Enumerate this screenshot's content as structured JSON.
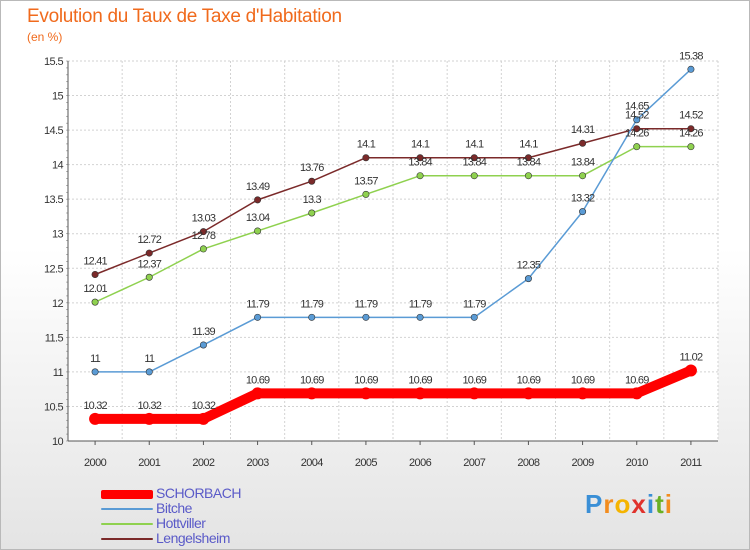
{
  "chart_data": {
    "type": "line",
    "title": "Evolution du Taux de Taxe d'Habitation",
    "subtitle": "(en %)",
    "xlabel": "",
    "ylabel": "",
    "x": [
      "2000",
      "2001",
      "2002",
      "2003",
      "2004",
      "2005",
      "2006",
      "2007",
      "2008",
      "2009",
      "2010",
      "2011"
    ],
    "ylim": [
      10,
      15.5
    ],
    "yticks": [
      "10",
      "10.5",
      "11",
      "11.5",
      "12",
      "12.5",
      "13",
      "13.5",
      "14",
      "14.5",
      "15",
      "15.5"
    ],
    "grid": true,
    "legend_position": "bottom-left",
    "series": [
      {
        "name": "SCHORBACH",
        "color": "#ff0000",
        "values": [
          10.32,
          10.32,
          10.32,
          10.69,
          10.69,
          10.69,
          10.69,
          10.69,
          10.69,
          10.69,
          10.69,
          11.02
        ],
        "labels": [
          "10.32",
          "10.32",
          "10.32",
          "10.69",
          "10.69",
          "10.69",
          "10.69",
          "10.69",
          "10.69",
          "10.69",
          "10.69",
          "11.02"
        ]
      },
      {
        "name": "Bitche",
        "color": "#5a9bd5",
        "values": [
          11,
          11,
          11.39,
          11.79,
          11.79,
          11.79,
          11.79,
          11.79,
          12.35,
          13.32,
          14.65,
          15.38
        ],
        "labels": [
          "11",
          "11",
          "11.39",
          "11.79",
          "11.79",
          "11.79",
          "11.79",
          "11.79",
          "12.35",
          "13.32",
          "14.65",
          "15.38"
        ]
      },
      {
        "name": "Hottviller",
        "color": "#8fd14f",
        "values": [
          12.01,
          12.37,
          12.78,
          13.04,
          13.3,
          13.57,
          13.84,
          13.84,
          13.84,
          13.84,
          14.26,
          14.26
        ],
        "labels": [
          "12.01",
          "12.37",
          "12.78",
          "13.04",
          "13.3",
          "13.57",
          "13.84",
          "13.84",
          "13.84",
          "13.84",
          "14.26",
          "14.26"
        ]
      },
      {
        "name": "Lengelsheim",
        "color": "#7b2a2a",
        "values": [
          12.41,
          12.72,
          13.03,
          13.49,
          13.76,
          14.1,
          14.1,
          14.1,
          14.1,
          14.31,
          14.52,
          14.52
        ],
        "labels": [
          "12.41",
          "12.72",
          "13.03",
          "13.49",
          "13.76",
          "14.1",
          "14.1",
          "14.1",
          "14.1",
          "14.31",
          "14.52",
          "14.52"
        ]
      }
    ]
  },
  "logo": {
    "letters": [
      "P",
      "r",
      "o",
      "x",
      "i",
      "t",
      "i"
    ],
    "colors": [
      "#3a8fd6",
      "#f28c1e",
      "#f5b400",
      "#e0322c",
      "#3a8fd6",
      "#6ab023",
      "#f28c1e"
    ]
  }
}
